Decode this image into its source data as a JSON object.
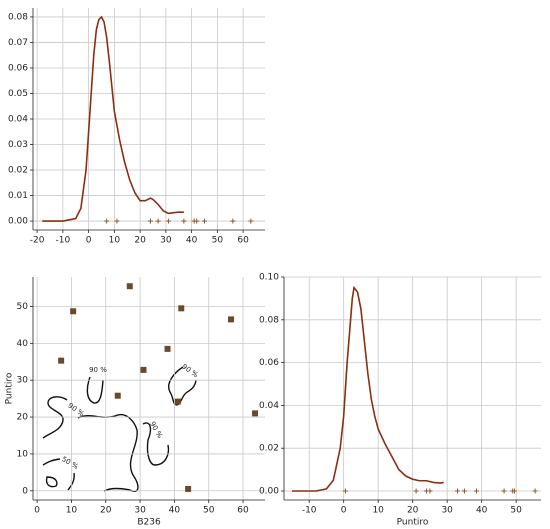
{
  "chart_data": [
    {
      "type": "line",
      "x": [
        -18,
        -10,
        -5,
        -3,
        -1,
        0,
        1,
        2,
        3,
        4,
        5,
        6,
        7,
        8,
        9,
        10,
        12,
        14,
        16,
        18,
        20,
        22,
        24,
        25,
        27,
        29,
        31,
        33,
        35,
        37
      ],
      "series": [
        {
          "color": "#8b2e12",
          "values": [
            0,
            0,
            0.001,
            0.005,
            0.02,
            0.035,
            0.05,
            0.065,
            0.075,
            0.079,
            0.08,
            0.078,
            0.072,
            0.063,
            0.053,
            0.043,
            0.032,
            0.023,
            0.016,
            0.011,
            0.008,
            0.008,
            0.009,
            0.0085,
            0.0065,
            0.004,
            0.003,
            0.0033,
            0.0035,
            0.0035
          ]
        }
      ],
      "rug": {
        "color": "#8b5a2b",
        "x": [
          7,
          11,
          24,
          27,
          31,
          37,
          41,
          42,
          45,
          56,
          63
        ],
        "values": [
          0,
          0,
          0,
          0,
          0,
          0,
          0,
          0,
          0,
          0,
          0
        ]
      },
      "xlim": [
        -21.6,
        68.5
      ],
      "ylim": [
        -0.0035,
        0.0835
      ],
      "xticks": [
        -20,
        -10,
        0,
        10,
        20,
        30,
        40,
        50,
        60
      ],
      "yticks": [
        {
          "value": 0,
          "label": "0.00"
        },
        {
          "value": 0.01,
          "label": "0.01"
        },
        {
          "value": 0.02,
          "label": "0.02"
        },
        {
          "value": 0.03,
          "label": "0.03"
        },
        {
          "value": 0.04,
          "label": "0.04"
        },
        {
          "value": 0.05,
          "label": "0.05"
        },
        {
          "value": 0.06,
          "label": "0.06"
        },
        {
          "value": 0.07,
          "label": "0.07"
        },
        {
          "value": 0.08,
          "label": "0.08"
        }
      ],
      "grid": true
    },
    {
      "type": "scatter",
      "x": [
        10.5,
        27,
        42,
        56.5,
        7,
        31,
        38,
        23.5,
        41,
        63.5,
        44
      ],
      "values": [
        48.7,
        55.5,
        49.5,
        46.5,
        35.3,
        32.8,
        38.5,
        25.8,
        24.2,
        21,
        0.5
      ],
      "color": "#6b4a2a",
      "xlabel": "B236",
      "ylabel": "Puntiro",
      "annotations": [
        "90 %",
        "90 %",
        "90 %",
        "90 %",
        "50 %"
      ],
      "xlim": [
        -1.2,
        66.4
      ],
      "ylim": [
        -2.5,
        58
      ],
      "xticks": [
        0,
        10,
        20,
        30,
        40,
        50,
        60
      ],
      "yticks": [
        0,
        10,
        20,
        30,
        40,
        50
      ],
      "grid": true
    },
    {
      "type": "line",
      "x": [
        -15,
        -8,
        -5,
        -3,
        -1,
        0,
        1,
        2,
        2.5,
        3,
        4,
        5,
        6,
        7,
        8,
        9,
        10,
        12,
        14,
        16,
        18,
        20,
        22,
        24,
        26,
        28,
        29
      ],
      "series": [
        {
          "color": "#8b2e12",
          "values": [
            0,
            0,
            0.001,
            0.005,
            0.02,
            0.035,
            0.06,
            0.08,
            0.09,
            0.095,
            0.093,
            0.085,
            0.07,
            0.055,
            0.043,
            0.035,
            0.029,
            0.022,
            0.016,
            0.01,
            0.007,
            0.0055,
            0.0048,
            0.0048,
            0.004,
            0.0037,
            0.004
          ]
        }
      ],
      "rug": {
        "color": "#8b5a2b",
        "x": [
          0.5,
          21,
          24,
          25,
          33,
          35,
          38.5,
          46.5,
          49,
          49.5,
          55.5
        ],
        "values": [
          0,
          0,
          0,
          0,
          0,
          0,
          0,
          0,
          0,
          0,
          0
        ]
      },
      "xlabel": "Puntiro",
      "xlim": [
        -17.3,
        57.2
      ],
      "ylim": [
        -0.0042,
        0.1
      ],
      "xticks": [
        -10,
        0,
        10,
        20,
        30,
        40,
        50
      ],
      "yticks": [
        {
          "value": 0,
          "label": "0.00"
        },
        {
          "value": 0.02,
          "label": "0.02"
        },
        {
          "value": 0.04,
          "label": "0.04"
        },
        {
          "value": 0.06,
          "label": "0.06"
        },
        {
          "value": 0.08,
          "label": "0.08"
        },
        {
          "value": 0.1,
          "label": "0.10"
        }
      ],
      "grid": true
    }
  ]
}
